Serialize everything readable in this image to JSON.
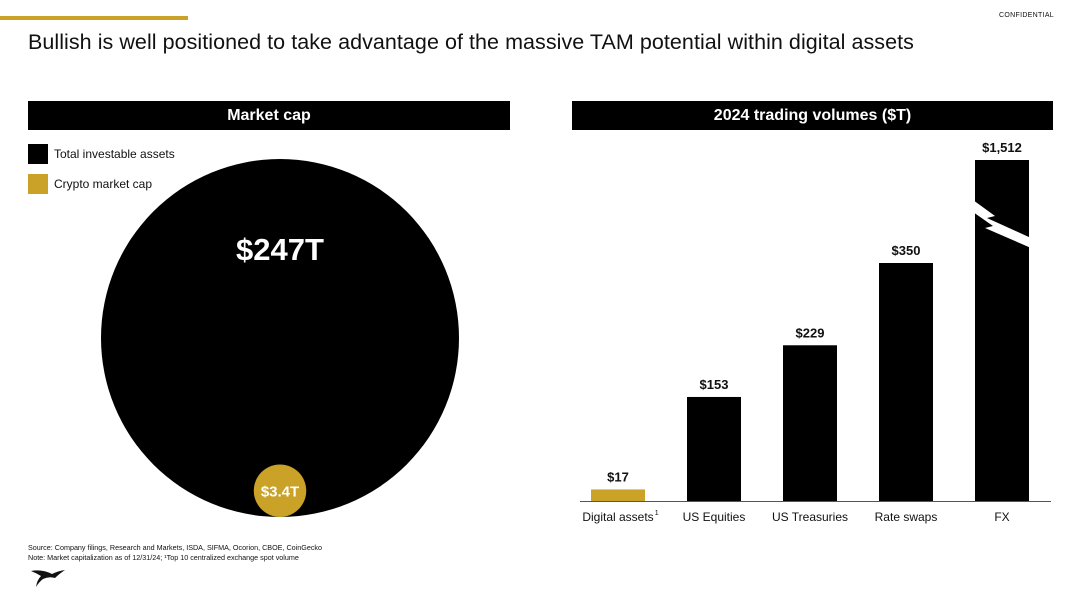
{
  "header": {
    "confidential_label": "CONFIDENTIAL",
    "title": "Bullish is well positioned to take advantage of the massive TAM potential within digital assets",
    "accent_color": "#c9a227"
  },
  "market_cap_panel": {
    "title": "Market cap",
    "legend": [
      {
        "label": "Total investable assets",
        "color": "#000000"
      },
      {
        "label": "Crypto market cap",
        "color": "#c9a227"
      }
    ]
  },
  "footnotes": {
    "source": "Source: Company filings, Research and Markets, ISDA, SIFMA, Ocorion, CBOE, CoinGecko",
    "note": "Note: Market capitalization as of 12/31/24; ¹Top 10 centralized exchange spot volume"
  },
  "logo": {
    "icon": "bullish-logo-icon"
  },
  "chart_data": [
    {
      "type": "bubble",
      "title": "Market cap",
      "series": [
        {
          "name": "Total investable assets",
          "value": 247,
          "unit": "T",
          "label": "$247T",
          "color": "#000000"
        },
        {
          "name": "Crypto market cap",
          "value": 3.4,
          "unit": "T",
          "label": "$3.4T",
          "color": "#c9a227"
        }
      ]
    },
    {
      "type": "bar",
      "title": "2024 trading volumes ($T)",
      "categories": [
        "Digital assets",
        "US Equities",
        "US Treasuries",
        "Rate swaps",
        "FX"
      ],
      "category_superscripts": [
        "1",
        "",
        "",
        "",
        ""
      ],
      "values": [
        17,
        153,
        229,
        350,
        1512
      ],
      "labels": [
        "$17",
        "$153",
        "$229",
        "$350",
        "$1,512"
      ],
      "colors": [
        "#c9a227",
        "#000000",
        "#000000",
        "#000000",
        "#000000"
      ],
      "axis_break": {
        "category": "FX"
      },
      "ylim": [
        0,
        500
      ]
    }
  ]
}
